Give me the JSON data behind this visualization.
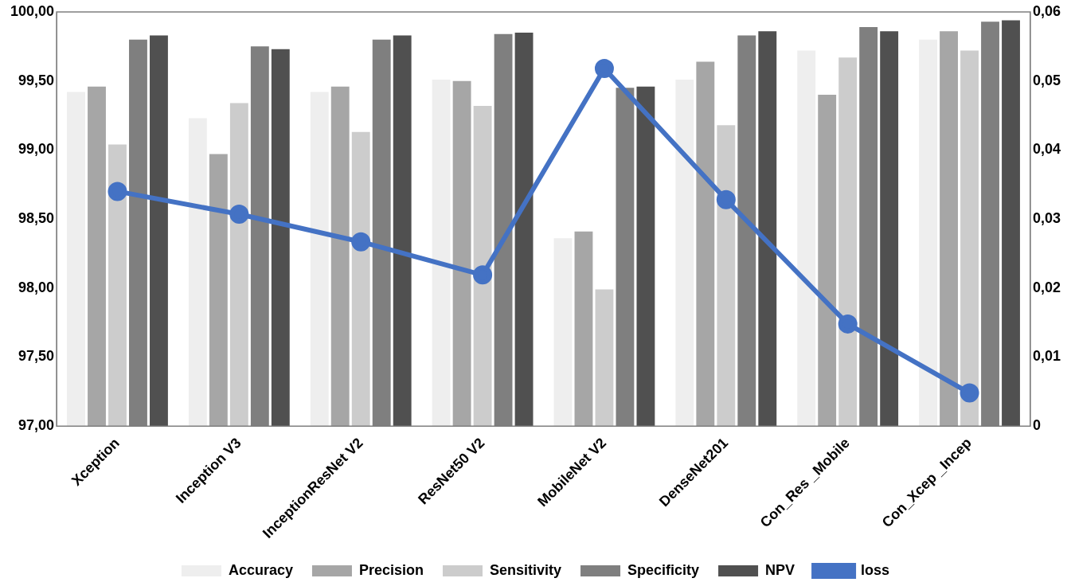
{
  "chart_data": {
    "type": "bar",
    "categories": [
      "Xception",
      "Inception V3",
      "InceptionResNet V2",
      "ResNet50 V2",
      "MobileNet V2",
      "DenseNet201",
      "Con_Res _Mobile",
      "Con_Xcep _Incep"
    ],
    "series": [
      {
        "name": "Accuracy",
        "color": "#eeeeee",
        "values": [
          99.42,
          99.23,
          99.42,
          99.51,
          98.36,
          99.51,
          99.72,
          99.8
        ]
      },
      {
        "name": "Precision",
        "color": "#a6a6a6",
        "values": [
          99.46,
          98.97,
          99.46,
          99.5,
          98.41,
          99.64,
          99.4,
          99.86
        ]
      },
      {
        "name": "Sensitivity",
        "color": "#cccccc",
        "values": [
          99.04,
          99.34,
          99.13,
          99.32,
          97.99,
          99.18,
          99.67,
          99.72
        ]
      },
      {
        "name": "Specificity",
        "color": "#7f7f7f",
        "values": [
          99.8,
          99.75,
          99.8,
          99.84,
          99.45,
          99.83,
          99.89,
          99.93
        ]
      },
      {
        "name": "NPV",
        "color": "#505050",
        "values": [
          99.83,
          99.73,
          99.83,
          99.85,
          99.46,
          99.86,
          99.86,
          99.94
        ]
      },
      {
        "name": "loss",
        "type": "line",
        "axis": "y2",
        "color": "#4472c4",
        "values": [
          0.034,
          0.0307,
          0.0267,
          0.0219,
          0.0518,
          0.0328,
          0.0148,
          0.0048
        ]
      }
    ],
    "ylim": [
      97,
      100
    ],
    "yticks": [
      {
        "value": 97,
        "label": "97,00"
      },
      {
        "value": 97.5,
        "label": "97,50"
      },
      {
        "value": 98,
        "label": "98,00"
      },
      {
        "value": 98.5,
        "label": "98,50"
      },
      {
        "value": 99,
        "label": "99,00"
      },
      {
        "value": 99.5,
        "label": "99,50"
      },
      {
        "value": 100,
        "label": "100,00"
      }
    ],
    "y2lim": [
      0,
      0.06
    ],
    "y2ticks": [
      0,
      {
        "value": 0.01,
        "label": "0,01"
      },
      {
        "value": 0.02,
        "label": "0,02"
      },
      {
        "value": 0.03,
        "label": "0,03"
      },
      {
        "value": 0.04,
        "label": "0,04"
      },
      {
        "value": 0.05,
        "label": "0,05"
      },
      {
        "value": 0.06,
        "label": "0,06"
      }
    ],
    "legend": "bottom",
    "marker": "circle",
    "line_style": "solid"
  }
}
